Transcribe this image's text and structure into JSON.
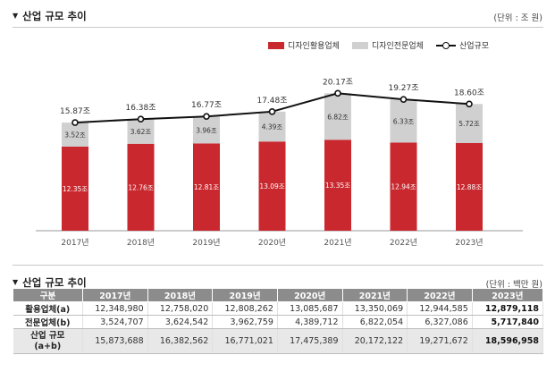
{
  "top": {
    "title": "산업 규모 추이",
    "unit": "(단위 : 조 원)"
  },
  "legend": {
    "active": "디자인활용업체",
    "specialist": "디자인전문업체",
    "total": "산업규모"
  },
  "colors": {
    "active": "#c8282e",
    "specialist": "#d0d0d0",
    "line": "#111111"
  },
  "chart_data": {
    "type": "bar",
    "stacked": true,
    "categories": [
      "2017년",
      "2018년",
      "2019년",
      "2020년",
      "2021년",
      "2022년",
      "2023년"
    ],
    "series": [
      {
        "name": "디자인활용업체",
        "values": [
          12.35,
          12.76,
          12.81,
          13.09,
          13.35,
          12.94,
          12.88
        ],
        "labels": [
          "12.35조",
          "12.76조",
          "12.81조",
          "13.09조",
          "13.35조",
          "12.94조",
          "12.88조"
        ]
      },
      {
        "name": "디자인전문업체",
        "values": [
          3.52,
          3.62,
          3.96,
          4.39,
          6.82,
          6.33,
          5.72
        ],
        "labels": [
          "3.52조",
          "3.62조",
          "3.96조",
          "4.39조",
          "6.82조",
          "6.33조",
          "5.72조"
        ]
      },
      {
        "name": "산업규모",
        "type": "line",
        "values": [
          15.87,
          16.38,
          16.77,
          17.48,
          20.17,
          19.27,
          18.6
        ],
        "labels": [
          "15.87조",
          "16.38조",
          "16.77조",
          "17.48조",
          "20.17조",
          "19.27조",
          "18.60조"
        ]
      }
    ],
    "ylim": [
      0,
      21
    ]
  },
  "table": {
    "title": "산업 규모 추이",
    "unit": "(단위 : 백만 원)",
    "headers": [
      "구분",
      "2017년",
      "2018년",
      "2019년",
      "2020년",
      "2021년",
      "2022년",
      "2023년"
    ],
    "rows": [
      {
        "label": "활용업체(a)",
        "values": [
          "12,348,980",
          "12,758,020",
          "12,808,262",
          "13,085,687",
          "13,350,069",
          "12,944,585",
          "12,879,118"
        ]
      },
      {
        "label": "전문업체(b)",
        "values": [
          "3,524,707",
          "3,624,542",
          "3,962,759",
          "4,389,712",
          "6,822,054",
          "6,327,086",
          "5,717,840"
        ]
      },
      {
        "label_line1": "산업 규모",
        "label_line2": "(a+b)",
        "values": [
          "15,873,688",
          "16,382,562",
          "16,771,021",
          "17,475,389",
          "20,172,122",
          "19,271,672",
          "18,596,958"
        ]
      }
    ]
  }
}
